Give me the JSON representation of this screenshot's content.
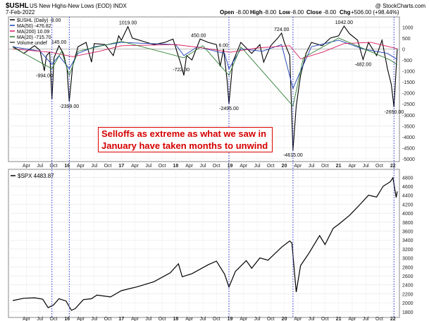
{
  "header": {
    "symbol": "$USHL",
    "description": "US New Highs-New Lows (EOD)  INDX",
    "date": "7-Feb-2022",
    "open_label": "Open",
    "open": "-8.00",
    "high_label": "High",
    "high": "-8.00",
    "low_label": "Low",
    "low": "-8.00",
    "close_label": "Close",
    "close": "-8.00",
    "chg_label": "Chg",
    "chg": "+506.00 (+98.44%)",
    "watermark": "@ StockCharts.com"
  },
  "legend_top": [
    {
      "text": "$USHL (Daily) -8.00",
      "color": "#000000"
    },
    {
      "text": "MA(50) -476.82",
      "color": "#1b3fb5"
    },
    {
      "text": "MA(200) 10.09",
      "color": "#d81b60"
    },
    {
      "text": "MA(20) -715.70",
      "color": "#2e7d32"
    },
    {
      "text": "Volume undef",
      "color": "#444444"
    }
  ],
  "legend_bottom": {
    "text": "$SPX 4483.87"
  },
  "annotation": {
    "line1": "Selloffs as extreme as what we saw in",
    "line2": "January have taken months to unwind"
  },
  "colors": {
    "annotation_red": "#d40000",
    "ma50": "#1b3fb5",
    "ma200": "#d81b60",
    "ma20": "#2e7d32",
    "marker_lines": "#2233cc"
  },
  "chart_data": [
    {
      "type": "line",
      "title": "$USHL US New Highs-New Lows (EOD)",
      "ylim": [
        -5000,
        1300
      ],
      "yticks": [
        1000,
        500,
        0,
        -500,
        -1000,
        -1500,
        -2000,
        -2500,
        -3000,
        -3500,
        -4000,
        -4500,
        -5000
      ],
      "x_month_labels": [
        {
          "t": 2015.25,
          "label": "Apr"
        },
        {
          "t": 2015.5,
          "label": "Jul"
        },
        {
          "t": 2015.75,
          "label": "Oct"
        },
        {
          "t": 2016.0,
          "label": "16"
        },
        {
          "t": 2016.25,
          "label": "Apr"
        },
        {
          "t": 2016.5,
          "label": "Jul"
        },
        {
          "t": 2016.75,
          "label": "Oct"
        },
        {
          "t": 2017.0,
          "label": "17"
        },
        {
          "t": 2017.25,
          "label": "Apr"
        },
        {
          "t": 2017.5,
          "label": "Jul"
        },
        {
          "t": 2017.75,
          "label": "Oct"
        },
        {
          "t": 2018.0,
          "label": "18"
        },
        {
          "t": 2018.25,
          "label": "Apr"
        },
        {
          "t": 2018.5,
          "label": "Jul"
        },
        {
          "t": 2018.75,
          "label": "Oct"
        },
        {
          "t": 2019.0,
          "label": "19"
        },
        {
          "t": 2019.25,
          "label": "Apr"
        },
        {
          "t": 2019.5,
          "label": "Jul"
        },
        {
          "t": 2019.75,
          "label": "Oct"
        },
        {
          "t": 2020.0,
          "label": "20"
        },
        {
          "t": 2020.25,
          "label": "Apr"
        },
        {
          "t": 2020.5,
          "label": "Jul"
        },
        {
          "t": 2020.75,
          "label": "Oct"
        },
        {
          "t": 2021.0,
          "label": "21"
        },
        {
          "t": 2021.25,
          "label": "Apr"
        },
        {
          "t": 2021.5,
          "label": "Jul"
        },
        {
          "t": 2021.75,
          "label": "Oct"
        },
        {
          "t": 2022.0,
          "label": "22"
        }
      ],
      "series": [
        {
          "name": "$USHL (Daily)",
          "points": [
            [
              2015.0,
              120
            ],
            [
              2015.2,
              -200
            ],
            [
              2015.4,
              150
            ],
            [
              2015.5,
              -60
            ],
            [
              2015.58,
              -994
            ],
            [
              2015.62,
              -300
            ],
            [
              2015.68,
              -150
            ],
            [
              2015.72,
              -2300
            ],
            [
              2015.76,
              -400
            ],
            [
              2015.85,
              145
            ],
            [
              2015.93,
              -200
            ],
            [
              2016.0,
              -900
            ],
            [
              2016.04,
              -2399
            ],
            [
              2016.1,
              -800
            ],
            [
              2016.2,
              100
            ],
            [
              2016.35,
              300
            ],
            [
              2016.45,
              -600
            ],
            [
              2016.5,
              250
            ],
            [
              2016.7,
              200
            ],
            [
              2016.85,
              -300
            ],
            [
              2016.95,
              600
            ],
            [
              2017.0,
              400
            ],
            [
              2017.12,
              1019
            ],
            [
              2017.2,
              500
            ],
            [
              2017.4,
              350
            ],
            [
              2017.6,
              200
            ],
            [
              2017.8,
              300
            ],
            [
              2017.95,
              450
            ],
            [
              2018.1,
              -722
            ],
            [
              2018.15,
              -1200
            ],
            [
              2018.2,
              -300
            ],
            [
              2018.3,
              -500
            ],
            [
              2018.45,
              450
            ],
            [
              2018.6,
              300
            ],
            [
              2018.75,
              200
            ],
            [
              2018.82,
              -800
            ],
            [
              2018.88,
              6
            ],
            [
              2018.95,
              -1500
            ],
            [
              2018.98,
              -2495
            ],
            [
              2019.05,
              -600
            ],
            [
              2019.2,
              300
            ],
            [
              2019.4,
              -200
            ],
            [
              2019.55,
              200
            ],
            [
              2019.62,
              -600
            ],
            [
              2019.75,
              150
            ],
            [
              2019.88,
              500
            ],
            [
              2019.95,
              724
            ],
            [
              2020.0,
              300
            ],
            [
              2020.1,
              -300
            ],
            [
              2020.16,
              -4615
            ],
            [
              2020.22,
              -2600
            ],
            [
              2020.3,
              -1200
            ],
            [
              2020.4,
              -200
            ],
            [
              2020.5,
              300
            ],
            [
              2020.7,
              150
            ],
            [
              2020.85,
              500
            ],
            [
              2021.0,
              600
            ],
            [
              2021.1,
              1042
            ],
            [
              2021.2,
              700
            ],
            [
              2021.35,
              400
            ],
            [
              2021.45,
              -482
            ],
            [
              2021.55,
              300
            ],
            [
              2021.7,
              -300
            ],
            [
              2021.8,
              400
            ],
            [
              2021.9,
              -900
            ],
            [
              2021.97,
              -1600
            ],
            [
              2022.02,
              -2650
            ],
            [
              2022.08,
              -8
            ]
          ]
        },
        {
          "name": "MA(50)",
          "points": [
            [
              2015.0,
              100
            ],
            [
              2015.5,
              -100
            ],
            [
              2015.72,
              -700
            ],
            [
              2015.85,
              -300
            ],
            [
              2016.04,
              -900
            ],
            [
              2016.2,
              -200
            ],
            [
              2016.5,
              100
            ],
            [
              2017.0,
              300
            ],
            [
              2017.5,
              250
            ],
            [
              2018.0,
              200
            ],
            [
              2018.15,
              -300
            ],
            [
              2018.4,
              100
            ],
            [
              2018.9,
              -200
            ],
            [
              2018.98,
              -900
            ],
            [
              2019.2,
              0
            ],
            [
              2019.6,
              -100
            ],
            [
              2019.95,
              200
            ],
            [
              2020.16,
              -1800
            ],
            [
              2020.3,
              -1000
            ],
            [
              2020.5,
              100
            ],
            [
              2021.0,
              400
            ],
            [
              2021.45,
              0
            ],
            [
              2021.9,
              -200
            ],
            [
              2022.08,
              -477
            ]
          ]
        },
        {
          "name": "MA(200)",
          "points": [
            [
              2015.0,
              0
            ],
            [
              2015.7,
              -150
            ],
            [
              2016.1,
              -350
            ],
            [
              2016.6,
              -100
            ],
            [
              2017.0,
              150
            ],
            [
              2018.0,
              200
            ],
            [
              2018.5,
              50
            ],
            [
              2019.0,
              -150
            ],
            [
              2019.5,
              50
            ],
            [
              2020.1,
              150
            ],
            [
              2020.3,
              -450
            ],
            [
              2020.7,
              -150
            ],
            [
              2021.1,
              250
            ],
            [
              2021.6,
              300
            ],
            [
              2022.08,
              10
            ]
          ]
        },
        {
          "name": "MA(20)",
          "points": [
            [
              2015.0,
              80
            ],
            [
              2015.72,
              -900
            ],
            [
              2015.9,
              -100
            ],
            [
              2016.04,
              -1200
            ],
            [
              2016.2,
              -100
            ],
            [
              2017.0,
              350
            ],
            [
              2018.15,
              -400
            ],
            [
              2018.5,
              150
            ],
            [
              2018.98,
              -1200
            ],
            [
              2019.2,
              100
            ],
            [
              2020.16,
              -2600
            ],
            [
              2020.35,
              -400
            ],
            [
              2021.0,
              500
            ],
            [
              2021.95,
              -500
            ],
            [
              2022.08,
              -716
            ]
          ]
        }
      ],
      "annotations": [
        {
          "value": "-994.00",
          "t": 2015.58,
          "y": -994
        },
        {
          "value": "145.00",
          "t": 2015.85,
          "y": 145
        },
        {
          "value": "-2399.00",
          "t": 2016.04,
          "y": -2399
        },
        {
          "value": "1019.00",
          "t": 2017.12,
          "y": 1019
        },
        {
          "value": "-722.00",
          "t": 2018.1,
          "y": -722
        },
        {
          "value": "450.00",
          "t": 2018.42,
          "y": 450
        },
        {
          "value": "6.00",
          "t": 2018.88,
          "y": 6
        },
        {
          "value": "-2495.00",
          "t": 2018.98,
          "y": -2495
        },
        {
          "value": "724.00",
          "t": 2019.95,
          "y": 724
        },
        {
          "value": "-4615.00",
          "t": 2020.16,
          "y": -4615
        },
        {
          "value": "1042.00",
          "t": 2021.1,
          "y": 1042
        },
        {
          "value": "-482.00",
          "t": 2021.45,
          "y": -482
        },
        {
          "value": "-2650.00",
          "t": 2022.02,
          "y": -2650
        }
      ]
    },
    {
      "type": "line",
      "title": "$SPX",
      "ylim": [
        1750,
        4900
      ],
      "yticks": [
        4800,
        4600,
        4400,
        4200,
        4000,
        3800,
        3600,
        3400,
        3200,
        3000,
        2800,
        2600,
        2400,
        2200,
        2000,
        1800
      ],
      "series": [
        {
          "name": "$SPX",
          "points": [
            [
              2015.0,
              2050
            ],
            [
              2015.2,
              2100
            ],
            [
              2015.4,
              2110
            ],
            [
              2015.55,
              2080
            ],
            [
              2015.65,
              1890
            ],
            [
              2015.75,
              1950
            ],
            [
              2015.85,
              2090
            ],
            [
              2015.98,
              2040
            ],
            [
              2016.08,
              1830
            ],
            [
              2016.15,
              1870
            ],
            [
              2016.3,
              2070
            ],
            [
              2016.45,
              2090
            ],
            [
              2016.55,
              2170
            ],
            [
              2016.8,
              2130
            ],
            [
              2016.9,
              2200
            ],
            [
              2017.0,
              2270
            ],
            [
              2017.3,
              2360
            ],
            [
              2017.6,
              2470
            ],
            [
              2017.9,
              2670
            ],
            [
              2018.05,
              2870
            ],
            [
              2018.12,
              2580
            ],
            [
              2018.3,
              2650
            ],
            [
              2018.6,
              2850
            ],
            [
              2018.75,
              2930
            ],
            [
              2018.9,
              2640
            ],
            [
              2018.98,
              2350
            ],
            [
              2019.1,
              2700
            ],
            [
              2019.3,
              2940
            ],
            [
              2019.4,
              2770
            ],
            [
              2019.55,
              3000
            ],
            [
              2019.7,
              2950
            ],
            [
              2019.95,
              3240
            ],
            [
              2020.1,
              3380
            ],
            [
              2020.14,
              3330
            ],
            [
              2020.22,
              2240
            ],
            [
              2020.3,
              2830
            ],
            [
              2020.45,
              3100
            ],
            [
              2020.65,
              3500
            ],
            [
              2020.75,
              3300
            ],
            [
              2020.9,
              3660
            ],
            [
              2021.0,
              3750
            ],
            [
              2021.2,
              3950
            ],
            [
              2021.4,
              4200
            ],
            [
              2021.55,
              4400
            ],
            [
              2021.7,
              4360
            ],
            [
              2021.82,
              4600
            ],
            [
              2021.95,
              4700
            ],
            [
              2022.0,
              4790
            ],
            [
              2022.06,
              4350
            ],
            [
              2022.08,
              4484
            ]
          ]
        }
      ]
    }
  ]
}
